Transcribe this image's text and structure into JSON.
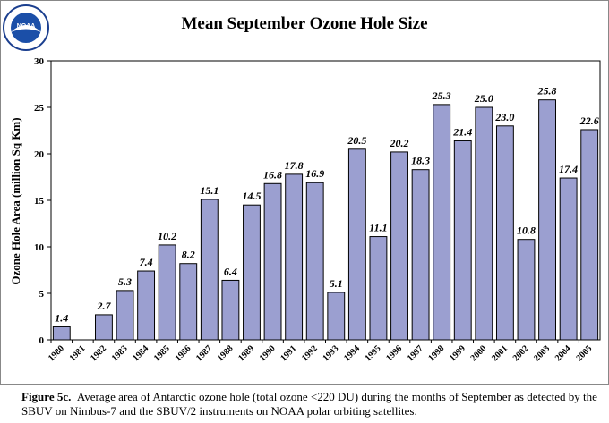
{
  "logo": {
    "text": "NOAA"
  },
  "caption": {
    "label": "Figure 5c.",
    "text": "Average area of Antarctic ozone hole (total ozone <220 DU) during the months of September as detected by the SBUV on Nimbus-7 and the SBUV/2 instruments on NOAA polar orbiting satellites."
  },
  "chart_data": {
    "type": "bar",
    "title": "Mean September Ozone Hole Size",
    "xlabel": "",
    "ylabel": "Ozone Hole Area (million Sq Km)",
    "ylim": [
      0,
      30
    ],
    "yticks": [
      0,
      5,
      10,
      15,
      20,
      25,
      30
    ],
    "grid": false,
    "bar_color": "#9b9fd0",
    "categories": [
      "1980",
      "1981",
      "1982",
      "1983",
      "1984",
      "1985",
      "1986",
      "1987",
      "1988",
      "1989",
      "1990",
      "1991",
      "1992",
      "1993",
      "1994",
      "1995",
      "1996",
      "1997",
      "1998",
      "1999",
      "2000",
      "2001",
      "2002",
      "2003",
      "2004",
      "2005"
    ],
    "values": [
      1.4,
      null,
      2.7,
      5.3,
      7.4,
      10.2,
      8.2,
      15.1,
      6.4,
      14.5,
      16.8,
      17.8,
      16.9,
      5.1,
      20.5,
      11.1,
      20.2,
      18.3,
      25.3,
      21.4,
      25.0,
      23.0,
      10.8,
      25.8,
      17.4,
      22.6
    ],
    "data_labels": [
      "1.4",
      "",
      "2.7",
      "5.3",
      "7.4",
      "10.2",
      "8.2",
      "15.1",
      "6.4",
      "14.5",
      "16.8",
      "17.8",
      "16.9",
      "5.1",
      "20.5",
      "11.1",
      "20.2",
      "18.3",
      "25.3",
      "21.4",
      "25.0",
      "23.0",
      "10.8",
      "25.8",
      "17.4",
      "22.6"
    ]
  }
}
